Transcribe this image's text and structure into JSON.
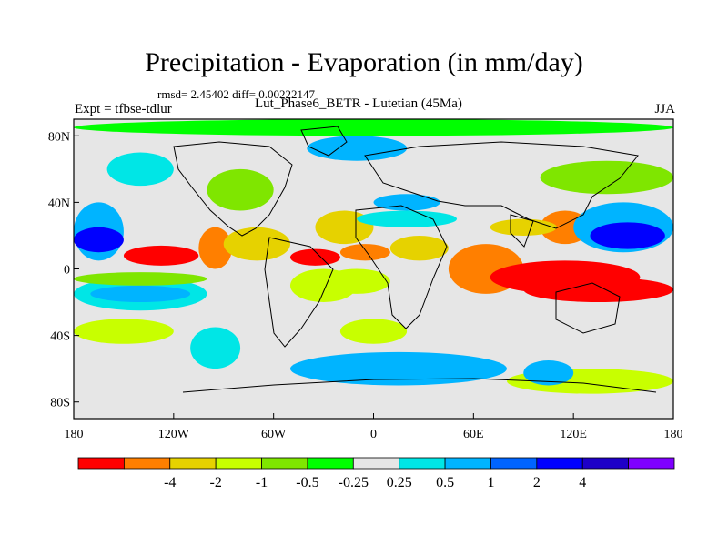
{
  "title": "Precipitation - Evaporation (in mm/day)",
  "stats_line": "rmsd= 2.45402 diff= 0.00222147",
  "subtitle": "Lut_Phase6_BETR - Lutetian (45Ma)",
  "experiment": "Expt = tfbse-tdlur",
  "season": "JJA",
  "map": {
    "lon_range": [
      -180,
      180
    ],
    "lat_range": [
      -90,
      90
    ],
    "lat_ticks": [
      {
        "value": 80,
        "label": "80N"
      },
      {
        "value": 40,
        "label": "40N"
      },
      {
        "value": 0,
        "label": "0"
      },
      {
        "value": -40,
        "label": "40S"
      },
      {
        "value": -80,
        "label": "80S"
      }
    ],
    "lon_ticks": [
      {
        "value": -180,
        "label": "180"
      },
      {
        "value": -120,
        "label": "120W"
      },
      {
        "value": -60,
        "label": "60W"
      },
      {
        "value": 0,
        "label": "0"
      },
      {
        "value": 60,
        "label": "60E"
      },
      {
        "value": 120,
        "label": "120E"
      },
      {
        "value": 180,
        "label": "180"
      }
    ],
    "background_color": "#e6e6e6",
    "regions": [
      {
        "lon": [
          -180,
          180
        ],
        "lat": [
          -90,
          90
        ],
        "level": 5
      },
      {
        "lon": [
          -180,
          -140
        ],
        "lat": [
          15,
          45
        ],
        "level": 6
      },
      {
        "lon": [
          -180,
          -150
        ],
        "lat": [
          5,
          40
        ],
        "level": 8
      },
      {
        "lon": [
          -180,
          -150
        ],
        "lat": [
          10,
          25
        ],
        "level": 10
      },
      {
        "lon": [
          -150,
          -105
        ],
        "lat": [
          2,
          14
        ],
        "level": 0
      },
      {
        "lon": [
          -105,
          -85
        ],
        "lat": [
          0,
          25
        ],
        "level": 1
      },
      {
        "lon": [
          -90,
          -50
        ],
        "lat": [
          5,
          25
        ],
        "level": 2
      },
      {
        "lon": [
          -50,
          -20
        ],
        "lat": [
          2,
          12
        ],
        "level": 0
      },
      {
        "lon": [
          -35,
          0
        ],
        "lat": [
          15,
          35
        ],
        "level": 2
      },
      {
        "lon": [
          -180,
          -100
        ],
        "lat": [
          -25,
          -5
        ],
        "level": 7
      },
      {
        "lon": [
          -170,
          -110
        ],
        "lat": [
          -20,
          -10
        ],
        "level": 8
      },
      {
        "lon": [
          -180,
          -100
        ],
        "lat": [
          -10,
          -2
        ],
        "level": 4
      },
      {
        "lon": [
          -180,
          -120
        ],
        "lat": [
          -45,
          -30
        ],
        "level": 3
      },
      {
        "lon": [
          -110,
          -80
        ],
        "lat": [
          -60,
          -35
        ],
        "level": 7
      },
      {
        "lon": [
          -80,
          -40
        ],
        "lat": [
          -45,
          -25
        ],
        "level": 6
      },
      {
        "lon": [
          -20,
          20
        ],
        "lat": [
          -45,
          -30
        ],
        "level": 3
      },
      {
        "lon": [
          -50,
          80
        ],
        "lat": [
          -70,
          -50
        ],
        "level": 8
      },
      {
        "lon": [
          -50,
          -10
        ],
        "lat": [
          -20,
          0
        ],
        "level": 3
      },
      {
        "lon": [
          20,
          70
        ],
        "lat": [
          -40,
          -25
        ],
        "level": 6
      },
      {
        "lon": [
          80,
          180
        ],
        "lat": [
          -75,
          -60
        ],
        "level": 3
      },
      {
        "lon": [
          90,
          120
        ],
        "lat": [
          -70,
          -55
        ],
        "level": 8
      },
      {
        "lon": [
          -30,
          10
        ],
        "lat": [
          -15,
          0
        ],
        "level": 3
      },
      {
        "lon": [
          10,
          45
        ],
        "lat": [
          5,
          20
        ],
        "level": 2
      },
      {
        "lon": [
          -20,
          10
        ],
        "lat": [
          5,
          15
        ],
        "level": 1
      },
      {
        "lon": [
          45,
          90
        ],
        "lat": [
          -15,
          15
        ],
        "level": 1
      },
      {
        "lon": [
          70,
          160
        ],
        "lat": [
          -15,
          5
        ],
        "level": 0
      },
      {
        "lon": [
          90,
          180
        ],
        "lat": [
          -20,
          -5
        ],
        "level": 0
      },
      {
        "lon": [
          100,
          130
        ],
        "lat": [
          15,
          35
        ],
        "level": 1
      },
      {
        "lon": [
          70,
          110
        ],
        "lat": [
          20,
          30
        ],
        "level": 2
      },
      {
        "lon": [
          120,
          180
        ],
        "lat": [
          10,
          40
        ],
        "level": 8
      },
      {
        "lon": [
          130,
          175
        ],
        "lat": [
          12,
          28
        ],
        "level": 10
      },
      {
        "lon": [
          -100,
          -60
        ],
        "lat": [
          35,
          60
        ],
        "level": 4
      },
      {
        "lon": [
          -160,
          -120
        ],
        "lat": [
          50,
          70
        ],
        "level": 7
      },
      {
        "lon": [
          -40,
          20
        ],
        "lat": [
          65,
          80
        ],
        "level": 8
      },
      {
        "lon": [
          20,
          100
        ],
        "lat": [
          60,
          75
        ],
        "level": 6
      },
      {
        "lon": [
          0,
          40
        ],
        "lat": [
          35,
          45
        ],
        "level": 8
      },
      {
        "lon": [
          -10,
          50
        ],
        "lat": [
          25,
          35
        ],
        "level": 7
      },
      {
        "lon": [
          100,
          180
        ],
        "lat": [
          45,
          65
        ],
        "level": 4
      },
      {
        "lon": [
          -180,
          180
        ],
        "lat": [
          80,
          90
        ],
        "level": 5
      }
    ]
  },
  "colorbar": {
    "colors": [
      "#ff0000",
      "#ff7f00",
      "#e6d200",
      "#c8ff00",
      "#7fe600",
      "#00ff00",
      "#e6e6e6",
      "#00e6e6",
      "#00b4ff",
      "#0064ff",
      "#0000ff",
      "#1e00c8",
      "#7f00ff"
    ],
    "labels": [
      "-4",
      "-2",
      "-1",
      "-0.5",
      "-0.25",
      "0.25",
      "0.5",
      "1",
      "2",
      "4"
    ],
    "label_boundaries": [
      2,
      3,
      4,
      5,
      6,
      7,
      8,
      9,
      10,
      11
    ]
  }
}
